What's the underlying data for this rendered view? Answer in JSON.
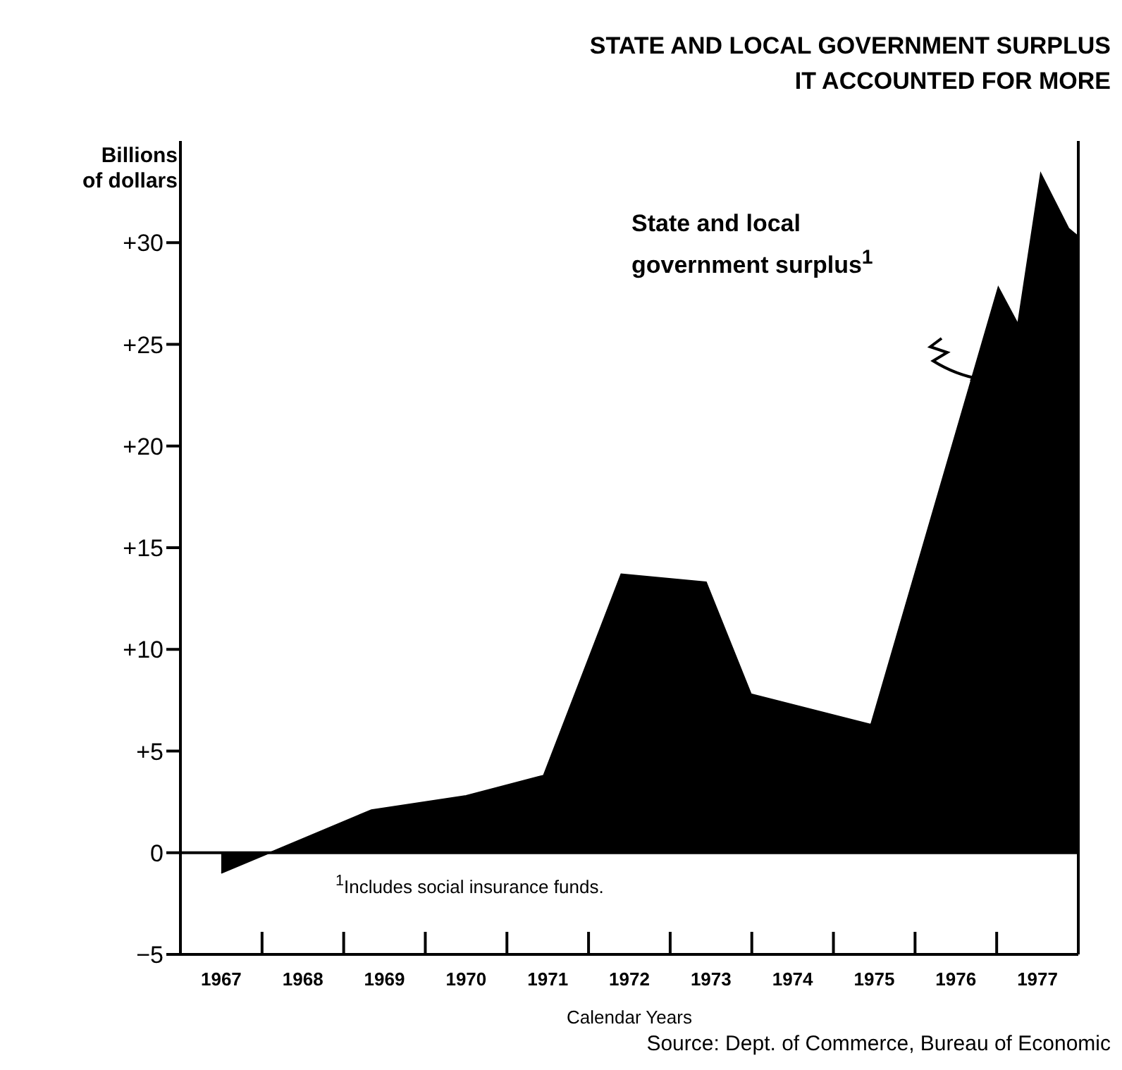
{
  "chart_data": {
    "type": "area",
    "title": "STATE AND LOCAL GOVERNMENT SURPLUS\nIT ACCOUNTED FOR MORE",
    "ylabel": "Billions\nof dollars",
    "xlabel": "Calendar Years",
    "x": [
      1967.5,
      1969.34,
      1970.5,
      1971.45,
      1972.4,
      1973.44,
      1973.99,
      1975.46,
      1977.02,
      1977.26,
      1977.54,
      1977.88,
      1978
    ],
    "series": [
      {
        "color": "#000000",
        "values": [
          -1.0,
          2.1,
          2.8,
          3.8,
          13.7,
          13.3,
          7.8,
          6.3,
          27.8,
          26.0,
          33.4,
          30.7,
          30.3
        ]
      }
    ],
    "xlim": [
      1967,
      1978
    ],
    "xticks": [
      {
        "value": 1967.5,
        "label": "1967"
      },
      {
        "value": 1968,
        "label": null
      },
      {
        "value": 1968.5,
        "label": "1968"
      },
      {
        "value": 1969,
        "label": null
      },
      {
        "value": 1969.5,
        "label": "1969"
      },
      {
        "value": 1970,
        "label": null
      },
      {
        "value": 1970.5,
        "label": "1970"
      },
      {
        "value": 1971,
        "label": null
      },
      {
        "value": 1971.5,
        "label": "1971"
      },
      {
        "value": 1972,
        "label": null
      },
      {
        "value": 1972.5,
        "label": "1972"
      },
      {
        "value": 1973,
        "label": null
      },
      {
        "value": 1973.5,
        "label": "1973"
      },
      {
        "value": 1974,
        "label": null
      },
      {
        "value": 1974.5,
        "label": "1974"
      },
      {
        "value": 1975,
        "label": null
      },
      {
        "value": 1975.5,
        "label": "1975"
      },
      {
        "value": 1976,
        "label": null
      },
      {
        "value": 1976.5,
        "label": "1976"
      },
      {
        "value": 1977,
        "label": null
      },
      {
        "value": 1977.5,
        "label": "1977"
      }
    ],
    "ylim": [
      -5,
      35
    ],
    "yticks": [
      {
        "value": -5,
        "label": "−5"
      },
      0,
      {
        "value": 5,
        "label": "+5"
      },
      {
        "value": 10,
        "label": "+10"
      },
      {
        "value": 15,
        "label": "+15"
      },
      {
        "value": 20,
        "label": "+20"
      },
      {
        "value": 25,
        "label": "+25"
      },
      {
        "value": 30,
        "label": "+30"
      }
    ],
    "ref_lines": [
      {
        "axis": "y",
        "value": 0,
        "color": "#000000"
      }
    ],
    "annotations": [
      "State and local\ngovernment surplus$^{1}$",
      "$^{1}$Includes social insurance funds.",
      "Source: Dept. of Commerce, Bureau of Economic"
    ],
    "grid": false,
    "legend": false
  }
}
